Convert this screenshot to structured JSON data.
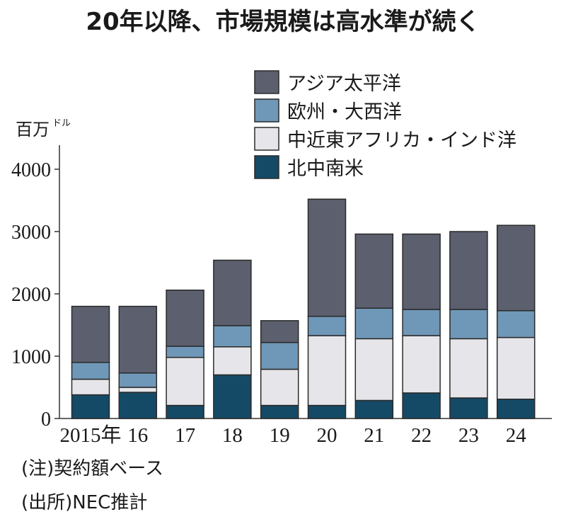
{
  "title": "20年以降、市場規模は高水準が続く",
  "unit_label": "百万",
  "unit_suffix": "ドル",
  "notes": [
    "(注)契約額ベース",
    "(出所)NEC推計"
  ],
  "chart_data": {
    "type": "bar",
    "stacked": true,
    "title": "20年以降、市場規模は高水準が続く",
    "ylabel": "百万ドル",
    "ylim": [
      0,
      4000
    ],
    "yticks": [
      0,
      1000,
      2000,
      3000,
      4000
    ],
    "categories": [
      "2015年",
      "16",
      "17",
      "18",
      "19",
      "20",
      "21",
      "22",
      "23",
      "24"
    ],
    "legend_position": "top-right",
    "series": [
      {
        "name": "北中南米",
        "color": "#154a66",
        "values": [
          380,
          420,
          210,
          700,
          210,
          210,
          290,
          410,
          330,
          310
        ]
      },
      {
        "name": "中近東アフリカ・インド洋",
        "color": "#e6e6ea",
        "values": [
          250,
          80,
          770,
          450,
          580,
          1120,
          990,
          920,
          950,
          990
        ]
      },
      {
        "name": "欧州・大西洋",
        "color": "#6f97b7",
        "values": [
          270,
          230,
          180,
          340,
          430,
          310,
          490,
          420,
          470,
          430
        ]
      },
      {
        "name": "アジア太平洋",
        "color": "#5c5f6e",
        "values": [
          900,
          1070,
          900,
          1050,
          350,
          1880,
          1190,
          1210,
          1250,
          1370
        ]
      }
    ],
    "legend_order": [
      "アジア太平洋",
      "欧州・大西洋",
      "中近東アフリカ・インド洋",
      "北中南米"
    ]
  }
}
